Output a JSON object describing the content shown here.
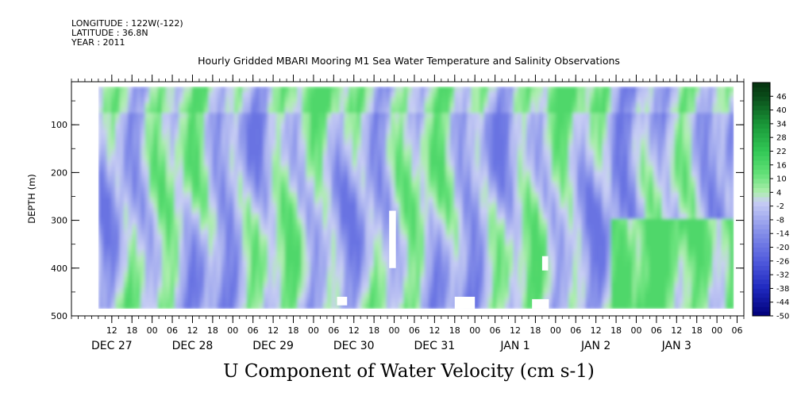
{
  "header": {
    "longitude": "LONGITUDE : 122W(-122)",
    "latitude": "LATITUDE : 36.8N",
    "year": "YEAR : 2011"
  },
  "chart_data": {
    "type": "heatmap",
    "title": "Hourly Gridded MBARI Mooring M1 Sea Water Temperature and Salinity Observations",
    "xlabel": "",
    "ylabel": "DEPTH (m)",
    "caption": "U Component of Water Velocity (cm s-1)",
    "y_ticks": [
      "100",
      "200",
      "300",
      "400",
      "500"
    ],
    "y_tick_values": [
      100,
      200,
      300,
      400,
      500
    ],
    "ylim": [
      500,
      10
    ],
    "data_depth_range": [
      20,
      485
    ],
    "x_hour_ticks": [
      "12",
      "18",
      "00",
      "06",
      "12",
      "18",
      "00",
      "06",
      "12",
      "18",
      "00",
      "06",
      "12",
      "18",
      "00",
      "06",
      "12",
      "18",
      "00",
      "06",
      "12",
      "18",
      "00",
      "06",
      "12",
      "18",
      "00",
      "06",
      "12",
      "18",
      "00",
      "06"
    ],
    "x_hour_tick_values": [
      12,
      18,
      24,
      30,
      36,
      42,
      48,
      54,
      60,
      66,
      72,
      78,
      84,
      90,
      96,
      102,
      108,
      114,
      120,
      126,
      132,
      138,
      144,
      150,
      156,
      162,
      168,
      174,
      180,
      186,
      192,
      198
    ],
    "x_day_labels": [
      {
        "label": "DEC 27",
        "hour": 12
      },
      {
        "label": "DEC 28",
        "hour": 36
      },
      {
        "label": "DEC 29",
        "hour": 60
      },
      {
        "label": "DEC 30",
        "hour": 84
      },
      {
        "label": "DEC 31",
        "hour": 108
      },
      {
        "label": "JAN  1",
        "hour": 132
      },
      {
        "label": "JAN  2",
        "hour": 156
      },
      {
        "label": "JAN  3",
        "hour": 180
      }
    ],
    "xlim_hours": [
      0,
      200
    ],
    "data_hour_range": [
      8,
      197
    ],
    "units": "cm s-1",
    "colorbar_labels": [
      "46",
      "40",
      "34",
      "28",
      "22",
      "16",
      "10",
      "4",
      "-2",
      "-8",
      "-14",
      "-20",
      "-26",
      "-32",
      "-38",
      "-44",
      "-50"
    ],
    "colorbar_label_values": [
      46,
      40,
      34,
      28,
      22,
      16,
      10,
      4,
      -2,
      -8,
      -14,
      -20,
      -26,
      -32,
      -38,
      -44,
      -50
    ],
    "colorbar_range": [
      -50,
      52
    ],
    "value_range_observed": [
      -20,
      16
    ],
    "colors": {
      "strong_positive": "#0d3d17",
      "positive": "#3ddc6a",
      "light_positive": "#a9eba8",
      "neutral_light": "#c3c9ef",
      "negative": "#8f99e6",
      "strong_negative": "#00007a"
    },
    "gaps": [
      {
        "hour_start": 79,
        "hour_end": 82,
        "depth_start": 460,
        "depth_end": 478
      },
      {
        "hour_start": 94.5,
        "hour_end": 96.5,
        "depth_start": 280,
        "depth_end": 400
      },
      {
        "hour_start": 114,
        "hour_end": 120,
        "depth_start": 460,
        "depth_end": 485
      },
      {
        "hour_start": 137,
        "hour_end": 142,
        "depth_start": 465,
        "depth_end": 485
      },
      {
        "hour_start": 140,
        "hour_end": 141.8,
        "depth_start": 375,
        "depth_end": 405
      }
    ]
  }
}
